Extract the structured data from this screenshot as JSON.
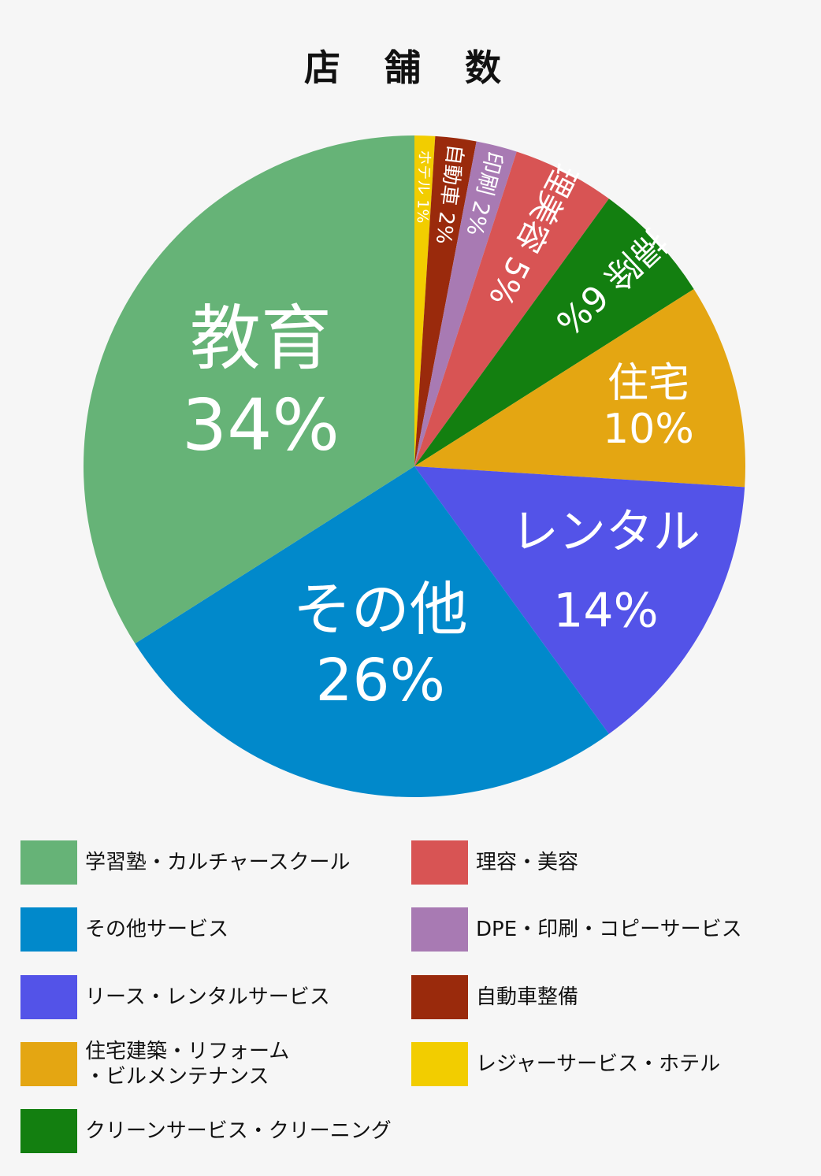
{
  "chart_data": {
    "type": "pie",
    "title": "店 舗 数",
    "slices": [
      {
        "label": "ホテル",
        "pct_label": "1%",
        "value": 1,
        "color": "#f2cd00"
      },
      {
        "label": "自動車",
        "pct_label": "2%",
        "value": 2,
        "color": "#9a2a0c"
      },
      {
        "label": "印刷",
        "pct_label": "2%",
        "value": 2,
        "color": "#a87ab3"
      },
      {
        "label": "理美容",
        "pct_label": "5%",
        "value": 5,
        "color": "#d85454"
      },
      {
        "label": "掃除",
        "pct_label": "6%",
        "value": 6,
        "color": "#137f10"
      },
      {
        "label": "住宅",
        "pct_label": "10%",
        "value": 10,
        "color": "#e4a612"
      },
      {
        "label": "レンタル",
        "pct_label": "14%",
        "value": 14,
        "color": "#5353e8"
      },
      {
        "label": "その他",
        "pct_label": "26%",
        "value": 26,
        "color": "#0189cb"
      },
      {
        "label": "教育",
        "pct_label": "34%",
        "value": 34,
        "color": "#66b377"
      }
    ],
    "legend": [
      {
        "label": "学習塾・カルチャースクール",
        "color": "#66b377"
      },
      {
        "label": "その他サービス",
        "color": "#0189cb"
      },
      {
        "label": "リース・レンタルサービス",
        "color": "#5353e8"
      },
      {
        "label": "住宅建築・リフォーム\n・ビルメンテナンス",
        "color": "#e4a612"
      },
      {
        "label": "クリーンサービス・クリーニング",
        "color": "#137f10"
      },
      {
        "label": "理容・美容",
        "color": "#d85454"
      },
      {
        "label": "DPE・印刷・コピーサービス",
        "color": "#a87ab3"
      },
      {
        "label": "自動車整備",
        "color": "#9a2a0c"
      },
      {
        "label": "レジャーサービス・ホテル",
        "color": "#f2cd00"
      }
    ],
    "legend_placement": "bottom"
  }
}
